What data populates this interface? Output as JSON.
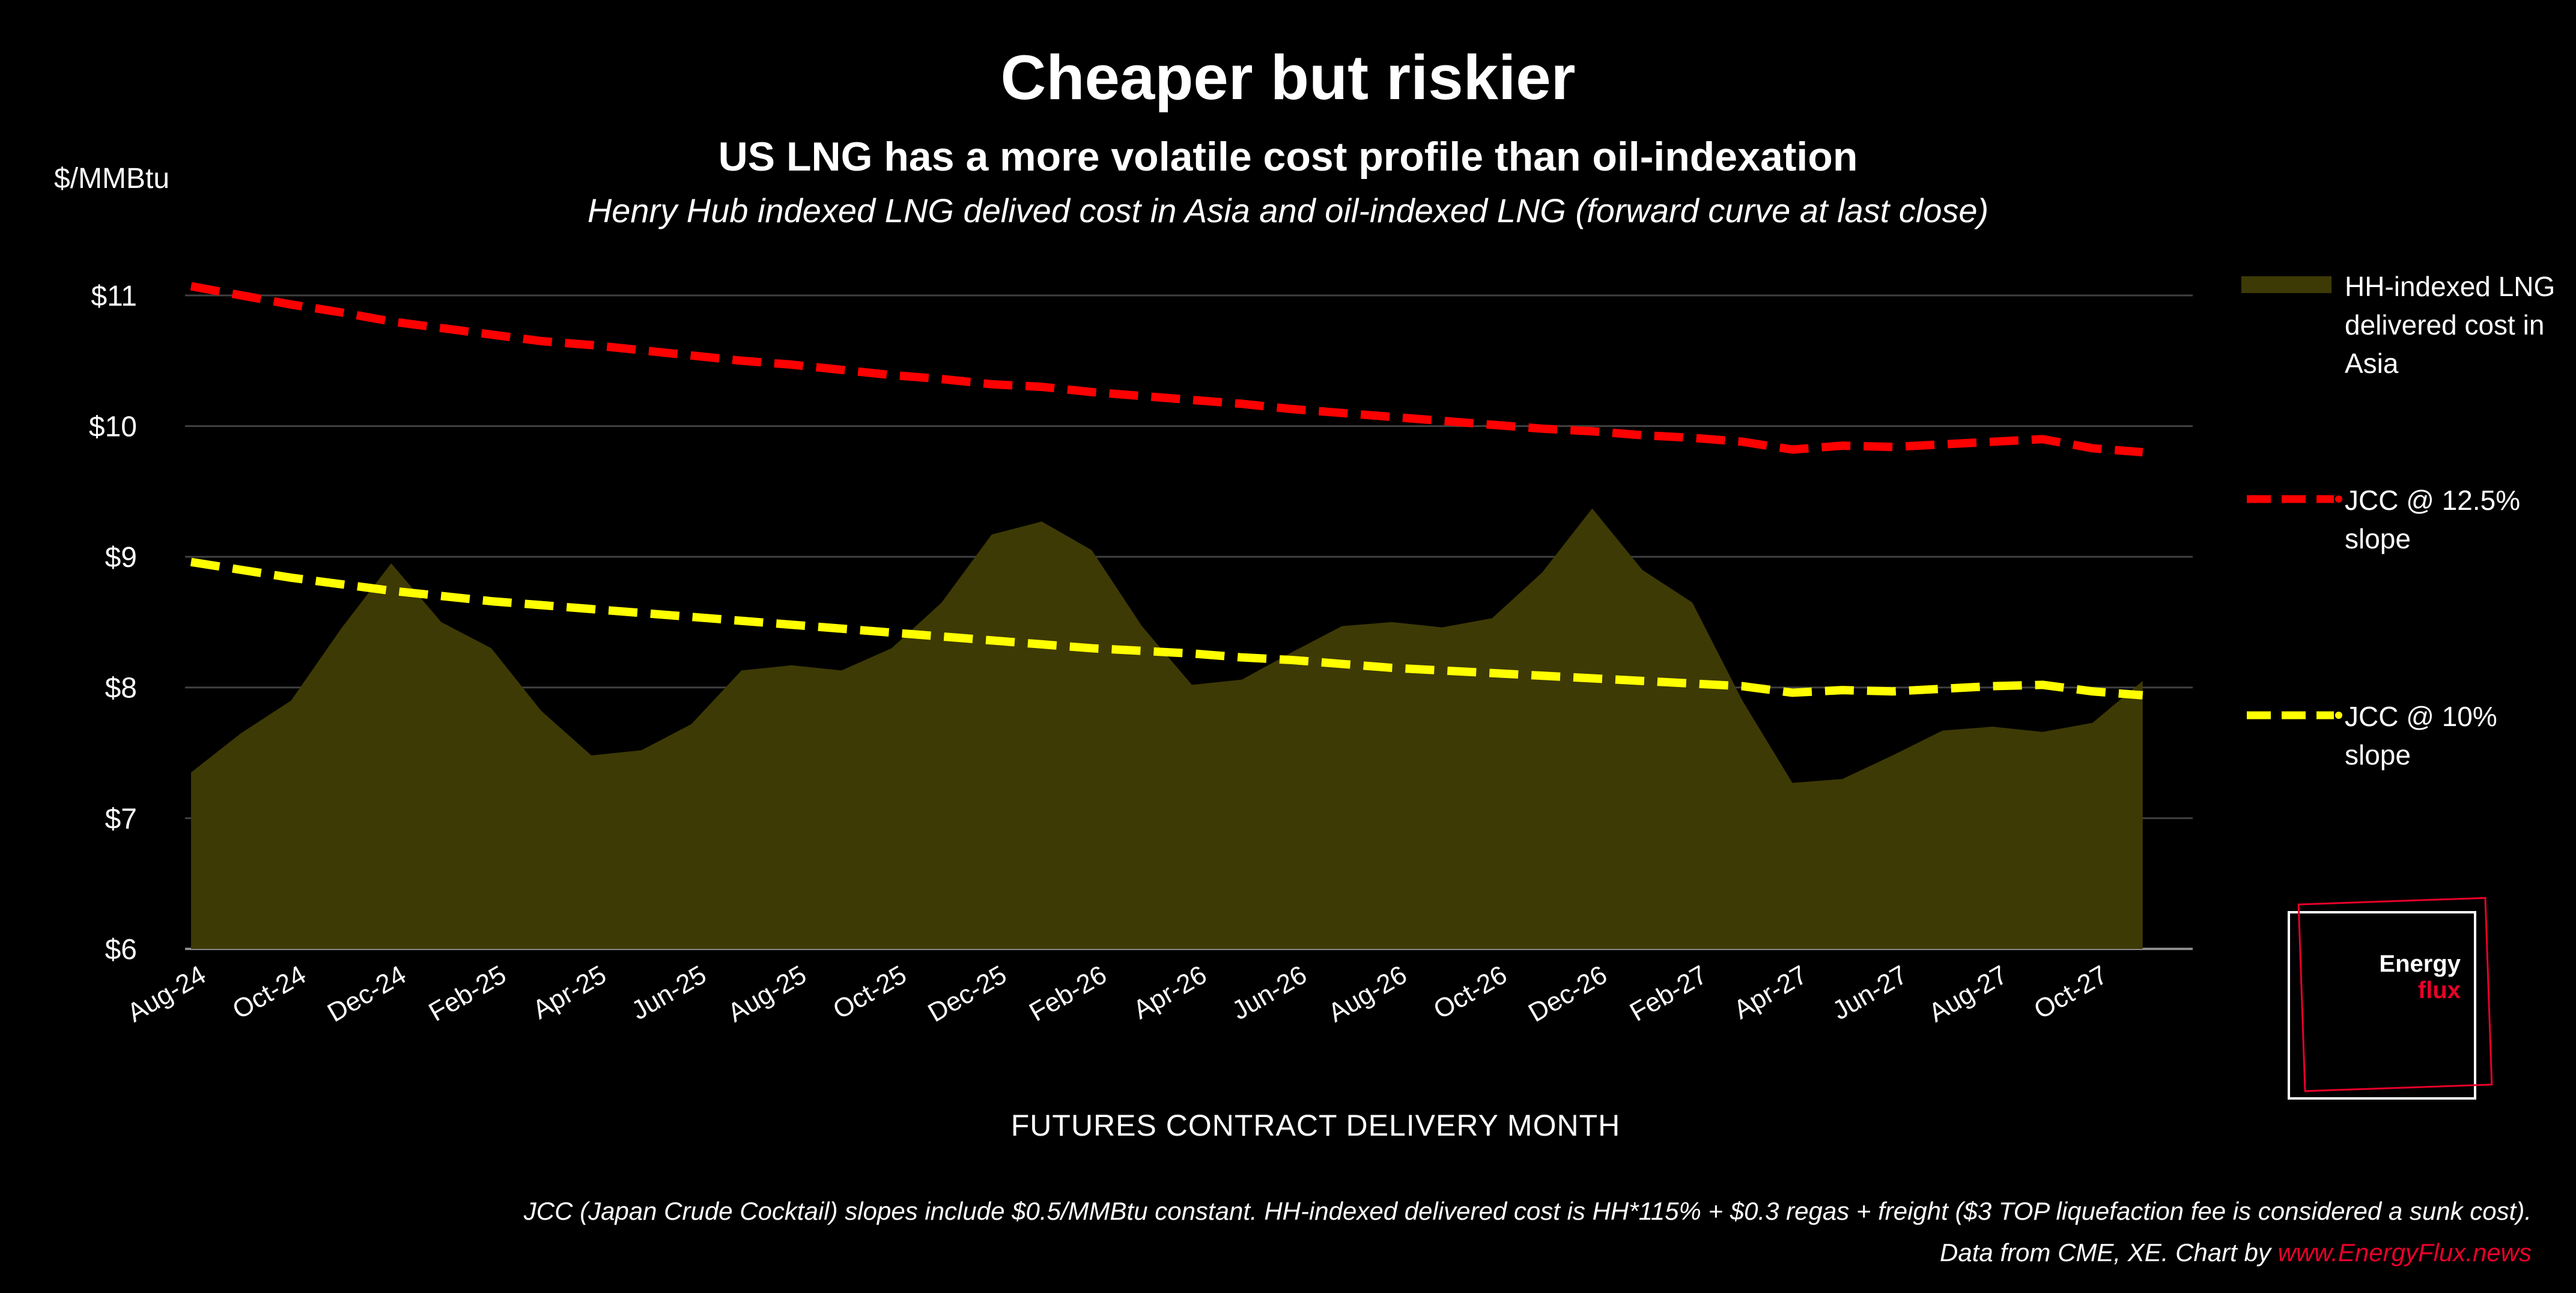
{
  "title": "Cheaper but riskier",
  "subtitle": "US LNG has a more volatile cost profile than oil-indexation",
  "description": "Henry Hub indexed LNG delived cost in Asia and oil-indexed LNG (forward curve at last close)",
  "logo": {
    "top": "Energy",
    "bottom": "flux"
  },
  "footnote": "JCC (Japan Crude Cocktail) slopes include $0.5/MMBtu constant. HH-indexed delivered cost is HH*115% + $0.3 regas + freight ($3 TOP liquefaction fee is considered a sunk cost).",
  "source_text": "Data from CME, XE. Chart by ",
  "source_link": "www.EnergyFlux.news",
  "colors": {
    "area": "#3e3a05",
    "jcc_12_5": "#ff0000",
    "jcc_10": "#ffff00",
    "grid": "#404040"
  },
  "chart_data": {
    "type": "area",
    "ylabel": "$/MMBtu",
    "xlabel": "FUTURES CONTRACT DELIVERY MONTH",
    "ylim": [
      6,
      11.5
    ],
    "yticks": [
      "$6",
      "$7",
      "$8",
      "$9",
      "$10",
      "$11"
    ],
    "ytick_values": [
      6,
      7,
      8,
      9,
      10,
      11
    ],
    "x": [
      "Aug-24",
      "Sep-24",
      "Oct-24",
      "Nov-24",
      "Dec-24",
      "Jan-25",
      "Feb-25",
      "Mar-25",
      "Apr-25",
      "May-25",
      "Jun-25",
      "Jul-25",
      "Aug-25",
      "Sep-25",
      "Oct-25",
      "Nov-25",
      "Dec-25",
      "Jan-26",
      "Feb-26",
      "Mar-26",
      "Apr-26",
      "May-26",
      "Jun-26",
      "Jul-26",
      "Aug-26",
      "Sep-26",
      "Oct-26",
      "Nov-26",
      "Dec-26",
      "Jan-27",
      "Feb-27",
      "Mar-27",
      "Apr-27",
      "May-27",
      "Jun-27",
      "Jul-27",
      "Aug-27",
      "Sep-27",
      "Oct-27",
      "Nov-27",
      "Dec-27"
    ],
    "xtick_labels": [
      "Aug-24",
      "Oct-24",
      "Dec-24",
      "Feb-25",
      "Apr-25",
      "Jun-25",
      "Aug-25",
      "Oct-25",
      "Dec-25",
      "Feb-26",
      "Apr-26",
      "Jun-26",
      "Aug-26",
      "Oct-26",
      "Dec-26",
      "Feb-27",
      "Apr-27",
      "Jun-27",
      "Aug-27",
      "Oct-27"
    ],
    "legend_position": "right",
    "series": [
      {
        "name": "HH-indexed LNG delivered cost in Asia",
        "type": "area",
        "values": [
          7.35,
          7.65,
          7.9,
          8.45,
          8.95,
          8.5,
          8.3,
          7.82,
          7.48,
          7.52,
          7.72,
          8.13,
          8.17,
          8.13,
          8.3,
          8.65,
          9.17,
          9.27,
          9.05,
          8.47,
          8.02,
          8.06,
          8.27,
          8.47,
          8.5,
          8.46,
          8.53,
          8.88,
          9.37,
          8.9,
          8.65,
          7.9,
          7.27,
          7.3,
          7.48,
          7.67,
          7.7,
          7.66,
          7.73,
          8.05,
          null
        ]
      },
      {
        "name": "JCC @ 12.5% slope",
        "type": "line",
        "values": [
          11.07,
          11.0,
          10.93,
          10.87,
          10.8,
          10.75,
          10.7,
          10.65,
          10.62,
          10.58,
          10.54,
          10.5,
          10.47,
          10.43,
          10.39,
          10.36,
          10.32,
          10.3,
          10.26,
          10.23,
          10.2,
          10.17,
          10.13,
          10.1,
          10.07,
          10.04,
          10.01,
          9.98,
          9.96,
          9.93,
          9.91,
          9.88,
          9.82,
          9.85,
          9.84,
          9.86,
          9.88,
          9.9,
          9.83,
          9.8,
          null
        ]
      },
      {
        "name": "JCC @ 10% slope",
        "type": "line",
        "values": [
          8.96,
          8.9,
          8.84,
          8.79,
          8.74,
          8.7,
          8.66,
          8.63,
          8.6,
          8.57,
          8.54,
          8.51,
          8.48,
          8.45,
          8.42,
          8.39,
          8.36,
          8.33,
          8.3,
          8.28,
          8.26,
          8.23,
          8.21,
          8.18,
          8.15,
          8.13,
          8.11,
          8.09,
          8.07,
          8.05,
          8.03,
          8.01,
          7.96,
          7.98,
          7.97,
          7.99,
          8.01,
          8.02,
          7.97,
          7.94,
          null
        ]
      }
    ]
  }
}
